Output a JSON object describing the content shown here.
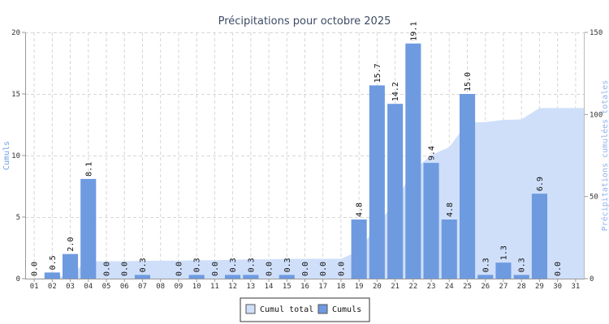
{
  "chart_data": {
    "type": "bar",
    "title": "Précipitations pour octobre 2025",
    "ylabel": "Cumuls",
    "ylabel_right": "Précipitations cumulées totales",
    "ylim": [
      0,
      20
    ],
    "ylim_right": [
      0,
      150
    ],
    "yticks": [
      0,
      5,
      10,
      15,
      20
    ],
    "yticks_right": [
      0,
      50,
      100,
      150
    ],
    "grid": true,
    "legend_position": "bottom-center",
    "categories": [
      "01",
      "02",
      "03",
      "04",
      "05",
      "06",
      "07",
      "08",
      "09",
      "10",
      "11",
      "12",
      "13",
      "14",
      "15",
      "16",
      "17",
      "18",
      "19",
      "20",
      "21",
      "22",
      "23",
      "24",
      "25",
      "26",
      "27",
      "28",
      "29",
      "30",
      "31"
    ],
    "series": [
      {
        "name": "Cumuls",
        "type": "bar",
        "axis": "left",
        "color": "#6e9ae0",
        "values": [
          0.0,
          0.5,
          2.0,
          8.1,
          0.0,
          0.0,
          0.3,
          null,
          0.0,
          0.3,
          0.0,
          0.3,
          0.3,
          0.0,
          0.3,
          0.0,
          0.0,
          0.0,
          4.8,
          15.7,
          14.2,
          19.1,
          9.4,
          4.8,
          15.0,
          0.3,
          1.3,
          0.3,
          6.9,
          0.0,
          null
        ],
        "labels": [
          "0.0",
          "0.5",
          "2.0",
          "8.1",
          "0.0",
          "0.0",
          "0.3",
          "",
          "0.0",
          "0.3",
          "0.0",
          "0.3",
          "0.3",
          "0.0",
          "0.3",
          "0.0",
          "0.0",
          "0.0",
          "4.8",
          "15.7",
          "14.2",
          "19.1",
          "9.4",
          "4.8",
          "15.0",
          "0.3",
          "1.3",
          "0.3",
          "6.9",
          "0.0",
          ""
        ]
      },
      {
        "name": "Cumul total",
        "type": "area",
        "axis": "right",
        "color": "#cfdffa",
        "values": [
          0.0,
          0.5,
          2.5,
          10.6,
          10.6,
          10.6,
          10.9,
          10.9,
          10.9,
          11.2,
          11.2,
          11.5,
          11.8,
          11.8,
          12.1,
          12.1,
          12.1,
          12.1,
          16.9,
          32.6,
          46.8,
          65.9,
          75.3,
          80.1,
          95.1,
          95.4,
          96.7,
          97.0,
          103.9,
          103.9,
          103.9
        ]
      }
    ]
  }
}
